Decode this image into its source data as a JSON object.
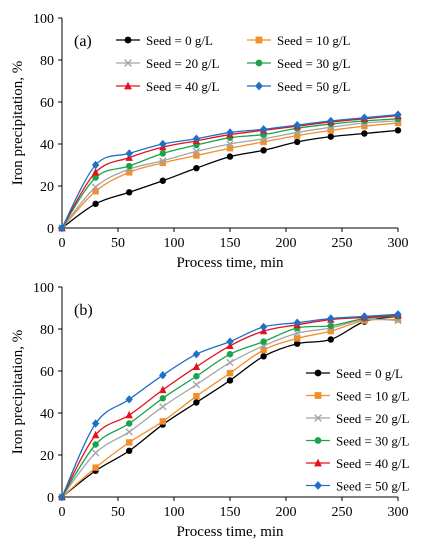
{
  "chart_data": [
    {
      "type": "line",
      "panel_label": "(a)",
      "xlabel": "Process time, min",
      "ylabel": "Iron precipitation, %",
      "xlim": [
        0,
        300
      ],
      "ylim": [
        0,
        100
      ],
      "xticks": [
        "0",
        "50",
        "100",
        "150",
        "200",
        "250",
        "300"
      ],
      "yticks": [
        "0",
        "20",
        "40",
        "60",
        "80",
        "100"
      ],
      "grid": false,
      "legend_placement": "top, two columns",
      "x": [
        0,
        30,
        60,
        90,
        120,
        150,
        180,
        210,
        240,
        270,
        300
      ],
      "series": [
        {
          "name": "Seed = 0 g/L",
          "color": "#000000",
          "marker": "circle",
          "values": [
            0,
            11.5,
            17,
            22.5,
            28.5,
            34,
            37,
            41,
            43.5,
            45,
            46.5
          ]
        },
        {
          "name": "Seed = 10 g/L",
          "color": "#f28e2b",
          "marker": "square",
          "values": [
            0,
            17.5,
            26.5,
            31,
            34.5,
            38,
            41,
            44,
            46.5,
            48.5,
            50
          ]
        },
        {
          "name": "Seed = 20 g/L",
          "color": "#a5a5a5",
          "marker": "x",
          "values": [
            0,
            19.5,
            28,
            32,
            36.5,
            40,
            42.5,
            45.5,
            48,
            50,
            51
          ]
        },
        {
          "name": "Seed = 30 g/L",
          "color": "#1aa34a",
          "marker": "circle",
          "values": [
            0,
            24,
            29.5,
            35.5,
            39.5,
            43,
            44.5,
            47.5,
            49.5,
            51,
            52
          ]
        },
        {
          "name": "Seed = 40 g/L",
          "color": "#e3121b",
          "marker": "triangle",
          "values": [
            0,
            26.5,
            33.5,
            38.5,
            41.5,
            44.5,
            46.5,
            48.5,
            50.5,
            52,
            53.5
          ]
        },
        {
          "name": "Seed = 50 g/L",
          "color": "#1f6fc5",
          "marker": "diamond",
          "values": [
            0,
            30,
            35.5,
            40,
            42.5,
            45.5,
            47,
            49,
            51,
            52.5,
            54
          ]
        }
      ]
    },
    {
      "type": "line",
      "panel_label": "(b)",
      "xlabel": "Process time, min",
      "ylabel": "Iron precipitation, %",
      "xlim": [
        0,
        300
      ],
      "ylim": [
        0,
        100
      ],
      "xticks": [
        "0",
        "50",
        "100",
        "150",
        "200",
        "250",
        "300"
      ],
      "yticks": [
        "0",
        "20",
        "40",
        "60",
        "80",
        "100"
      ],
      "grid": false,
      "legend_placement": "bottom-right",
      "x": [
        0,
        30,
        60,
        90,
        120,
        150,
        180,
        210,
        240,
        270,
        300
      ],
      "series": [
        {
          "name": "Seed = 0 g/L",
          "color": "#000000",
          "marker": "circle",
          "values": [
            0,
            12.5,
            22,
            34.5,
            45,
            55.5,
            67,
            73,
            75,
            83.5,
            86
          ]
        },
        {
          "name": "Seed = 10 g/L",
          "color": "#f28e2b",
          "marker": "square",
          "values": [
            0,
            14,
            26,
            36,
            48,
            59,
            70,
            75.5,
            79,
            84,
            84.5
          ]
        },
        {
          "name": "Seed = 20 g/L",
          "color": "#a5a5a5",
          "marker": "x",
          "values": [
            0,
            21,
            31,
            43,
            53.5,
            64,
            72,
            78,
            80.5,
            84.5,
            84
          ]
        },
        {
          "name": "Seed = 30 g/L",
          "color": "#1aa34a",
          "marker": "circle",
          "values": [
            0,
            25,
            35,
            47,
            57.5,
            68,
            74,
            80.5,
            81.5,
            85,
            86
          ]
        },
        {
          "name": "Seed = 40 g/L",
          "color": "#e3121b",
          "marker": "triangle",
          "values": [
            0,
            29.5,
            39,
            51,
            62,
            72,
            79,
            82,
            84.5,
            85.5,
            86.5
          ]
        },
        {
          "name": "Seed = 50 g/L",
          "color": "#1f6fc5",
          "marker": "diamond",
          "values": [
            0,
            35,
            46.5,
            58,
            68,
            74,
            81,
            83,
            85,
            86,
            87
          ]
        }
      ]
    }
  ]
}
